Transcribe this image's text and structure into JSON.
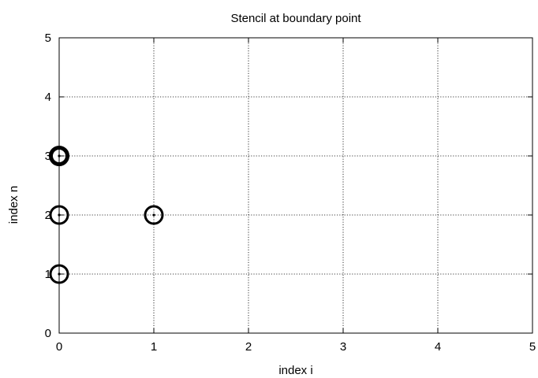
{
  "chart_data": {
    "type": "scatter",
    "title": "Stencil at boundary point",
    "xlabel": "index i",
    "ylabel": "index n",
    "xlim": [
      0,
      5
    ],
    "ylim": [
      0,
      5
    ],
    "xticks": [
      "0",
      "1",
      "2",
      "3",
      "4",
      "5"
    ],
    "yticks": [
      "0",
      "1",
      "2",
      "3",
      "4",
      "5"
    ],
    "grid": true,
    "legend": "none",
    "marker": "open-circle-with-center-dot",
    "points": [
      {
        "x": 0,
        "y": 3,
        "emphasis": true
      },
      {
        "x": 0,
        "y": 2,
        "emphasis": false
      },
      {
        "x": 1,
        "y": 2,
        "emphasis": false
      },
      {
        "x": 0,
        "y": 1,
        "emphasis": false
      }
    ]
  }
}
